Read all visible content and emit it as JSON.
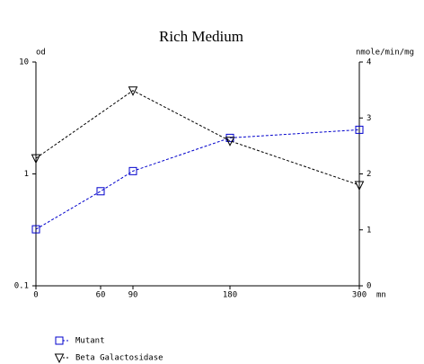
{
  "chart_data": {
    "type": "line",
    "title": "Rich Medium",
    "ylabel": "od",
    "y2label": "nmole/min/mg",
    "xlabel": "mn",
    "xlim": [
      0,
      300
    ],
    "xticks": [
      0,
      60,
      90,
      180,
      300
    ],
    "ylim": [
      0.1,
      10
    ],
    "yticks": [
      0.1,
      1,
      10
    ],
    "yscale": "log",
    "y2lim": [
      0,
      4
    ],
    "y2ticks": [
      0,
      1,
      2,
      3,
      4
    ],
    "series": [
      {
        "name": "Mutant",
        "color": "#0000cc",
        "marker": "square",
        "x": [
          0,
          60,
          90,
          180,
          300
        ],
        "values": [
          0.32,
          0.7,
          1.06,
          2.1,
          2.48
        ]
      },
      {
        "name": "Beta Galactosidase",
        "color": "#000000",
        "marker": "triangle-down",
        "axis": "y2",
        "x": [
          0,
          90,
          180,
          300
        ],
        "values": [
          2.28,
          3.49,
          2.59,
          1.8
        ]
      }
    ]
  }
}
